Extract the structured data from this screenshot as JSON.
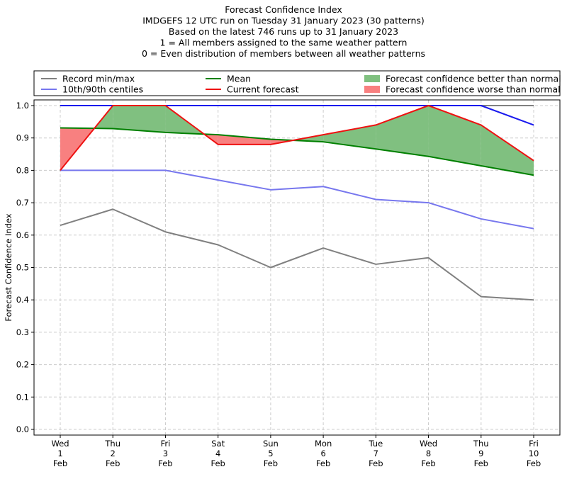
{
  "chart_data": {
    "type": "line",
    "title_lines": [
      "Forecast Confidence Index",
      "IMDGEFS 12 UTC run on Tuesday 31 January 2023 (30 patterns)",
      "Based on the latest 746 runs up to 31 January 2023",
      "1 = All members assigned to the same weather pattern",
      "0 = Even distribution of members between all weather patterns"
    ],
    "ylabel": "Forecast Confidence Index",
    "ylim": [
      0,
      1.0
    ],
    "yticks": [
      "0.0",
      "0.1",
      "0.2",
      "0.3",
      "0.4",
      "0.5",
      "0.6",
      "0.7",
      "0.8",
      "0.9",
      "1.0"
    ],
    "grid": true,
    "categories": [
      [
        "Wed",
        "1",
        "Feb"
      ],
      [
        "Thu",
        "2",
        "Feb"
      ],
      [
        "Fri",
        "3",
        "Feb"
      ],
      [
        "Sat",
        "4",
        "Feb"
      ],
      [
        "Sun",
        "5",
        "Feb"
      ],
      [
        "Mon",
        "6",
        "Feb"
      ],
      [
        "Tue",
        "7",
        "Feb"
      ],
      [
        "Wed",
        "8",
        "Feb"
      ],
      [
        "Thu",
        "9",
        "Feb"
      ],
      [
        "Fri",
        "10",
        "Feb"
      ]
    ],
    "series": {
      "record_min": [
        0.63,
        0.68,
        0.61,
        0.57,
        0.5,
        0.56,
        0.51,
        0.53,
        0.41,
        0.4
      ],
      "record_max": [
        1.0,
        1.0,
        1.0,
        1.0,
        1.0,
        1.0,
        1.0,
        1.0,
        1.0,
        1.0
      ],
      "p10": [
        0.8,
        0.8,
        0.8,
        0.77,
        0.74,
        0.75,
        0.71,
        0.7,
        0.65,
        0.62
      ],
      "p90": [
        1.0,
        1.0,
        1.0,
        1.0,
        1.0,
        1.0,
        1.0,
        1.0,
        1.0,
        0.94
      ],
      "mean": [
        0.931,
        0.929,
        0.917,
        0.91,
        0.896,
        0.888,
        0.866,
        0.843,
        0.814,
        0.785
      ],
      "current": [
        0.8,
        1.0,
        1.0,
        0.88,
        0.88,
        0.91,
        0.94,
        1.0,
        0.94,
        0.83
      ]
    },
    "legend": {
      "placement": "top",
      "items": [
        {
          "key": "record",
          "label": "Record min/max",
          "kind": "line",
          "color": "#808080"
        },
        {
          "key": "centiles",
          "label": "10th/90th centiles",
          "kind": "line",
          "color": "#7777ee"
        },
        {
          "key": "mean",
          "label": "Mean",
          "kind": "line",
          "color": "#008000"
        },
        {
          "key": "current",
          "label": "Current forecast",
          "kind": "line",
          "color": "#ee1111"
        },
        {
          "key": "better",
          "label": "Forecast confidence better than normal",
          "kind": "patch",
          "color": "#80c080"
        },
        {
          "key": "worse",
          "label": "Forecast confidence worse than normal",
          "kind": "patch",
          "color": "#f88080"
        }
      ]
    },
    "colors": {
      "record": "#808080",
      "p10": "#7777ee",
      "p90": "#1a1aee",
      "mean": "#008000",
      "current": "#ee1111",
      "better_fill": "#80c080",
      "worse_fill": "#f88080",
      "grid": "#cccccc"
    }
  }
}
